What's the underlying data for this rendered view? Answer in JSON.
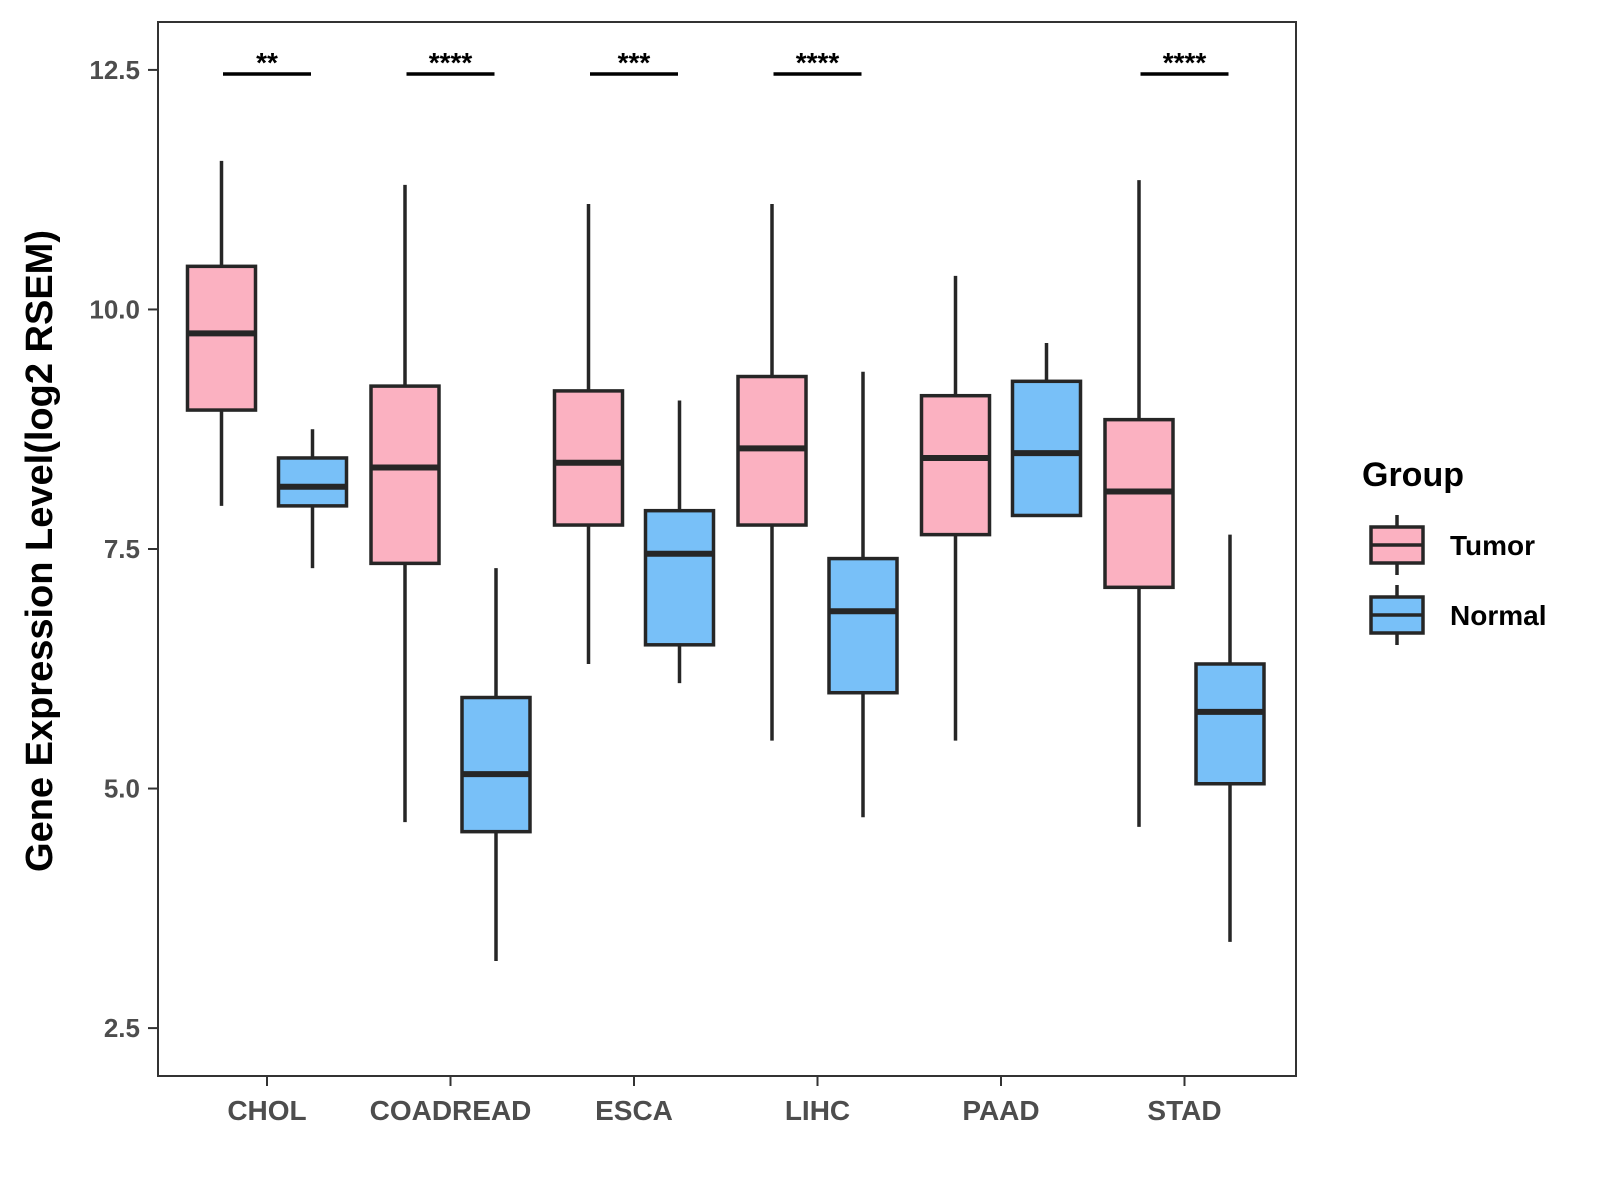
{
  "chart_data": {
    "type": "boxplot",
    "title": "",
    "xlabel": "",
    "ylabel": "Gene Expression Level(log2 RSEM)",
    "ylim": [
      2.0,
      13.0
    ],
    "yticks": [
      "2.5",
      "5.0",
      "7.5",
      "10.0",
      "12.5"
    ],
    "categories": [
      "CHOL",
      "COADREAD",
      "ESCA",
      "LIHC",
      "PAAD",
      "STAD"
    ],
    "legend": {
      "title": "Group",
      "position": "right"
    },
    "series": [
      {
        "name": "Tumor",
        "color": "#FBB1C1",
        "boxes": [
          {
            "min": 7.95,
            "q1": 8.95,
            "median": 9.75,
            "q3": 10.45,
            "max": 11.55
          },
          {
            "min": 4.65,
            "q1": 7.35,
            "median": 8.35,
            "q3": 9.2,
            "max": 11.3
          },
          {
            "min": 6.3,
            "q1": 7.75,
            "median": 8.4,
            "q3": 9.15,
            "max": 11.1
          },
          {
            "min": 5.5,
            "q1": 7.75,
            "median": 8.55,
            "q3": 9.3,
            "max": 11.1
          },
          {
            "min": 5.5,
            "q1": 7.65,
            "median": 8.45,
            "q3": 9.1,
            "max": 10.35
          },
          {
            "min": 4.6,
            "q1": 7.1,
            "median": 8.1,
            "q3": 8.85,
            "max": 11.35
          }
        ]
      },
      {
        "name": "Normal",
        "color": "#78C0F8",
        "boxes": [
          {
            "min": 7.3,
            "q1": 7.95,
            "median": 8.15,
            "q3": 8.45,
            "max": 8.75
          },
          {
            "min": 3.2,
            "q1": 4.55,
            "median": 5.15,
            "q3": 5.95,
            "max": 7.3
          },
          {
            "min": 6.1,
            "q1": 6.5,
            "median": 7.45,
            "q3": 7.9,
            "max": 9.05
          },
          {
            "min": 4.7,
            "q1": 6.0,
            "median": 6.85,
            "q3": 7.4,
            "max": 9.35
          },
          {
            "min": 7.85,
            "q1": 7.85,
            "median": 8.5,
            "q3": 9.25,
            "max": 9.65
          },
          {
            "min": 3.4,
            "q1": 5.05,
            "median": 5.8,
            "q3": 6.3,
            "max": 7.65
          }
        ]
      }
    ],
    "annotations": [
      {
        "category": "CHOL",
        "text": "**"
      },
      {
        "category": "COADREAD",
        "text": "****"
      },
      {
        "category": "ESCA",
        "text": "***"
      },
      {
        "category": "LIHC",
        "text": "****"
      },
      {
        "category": "STAD",
        "text": "****"
      }
    ]
  }
}
